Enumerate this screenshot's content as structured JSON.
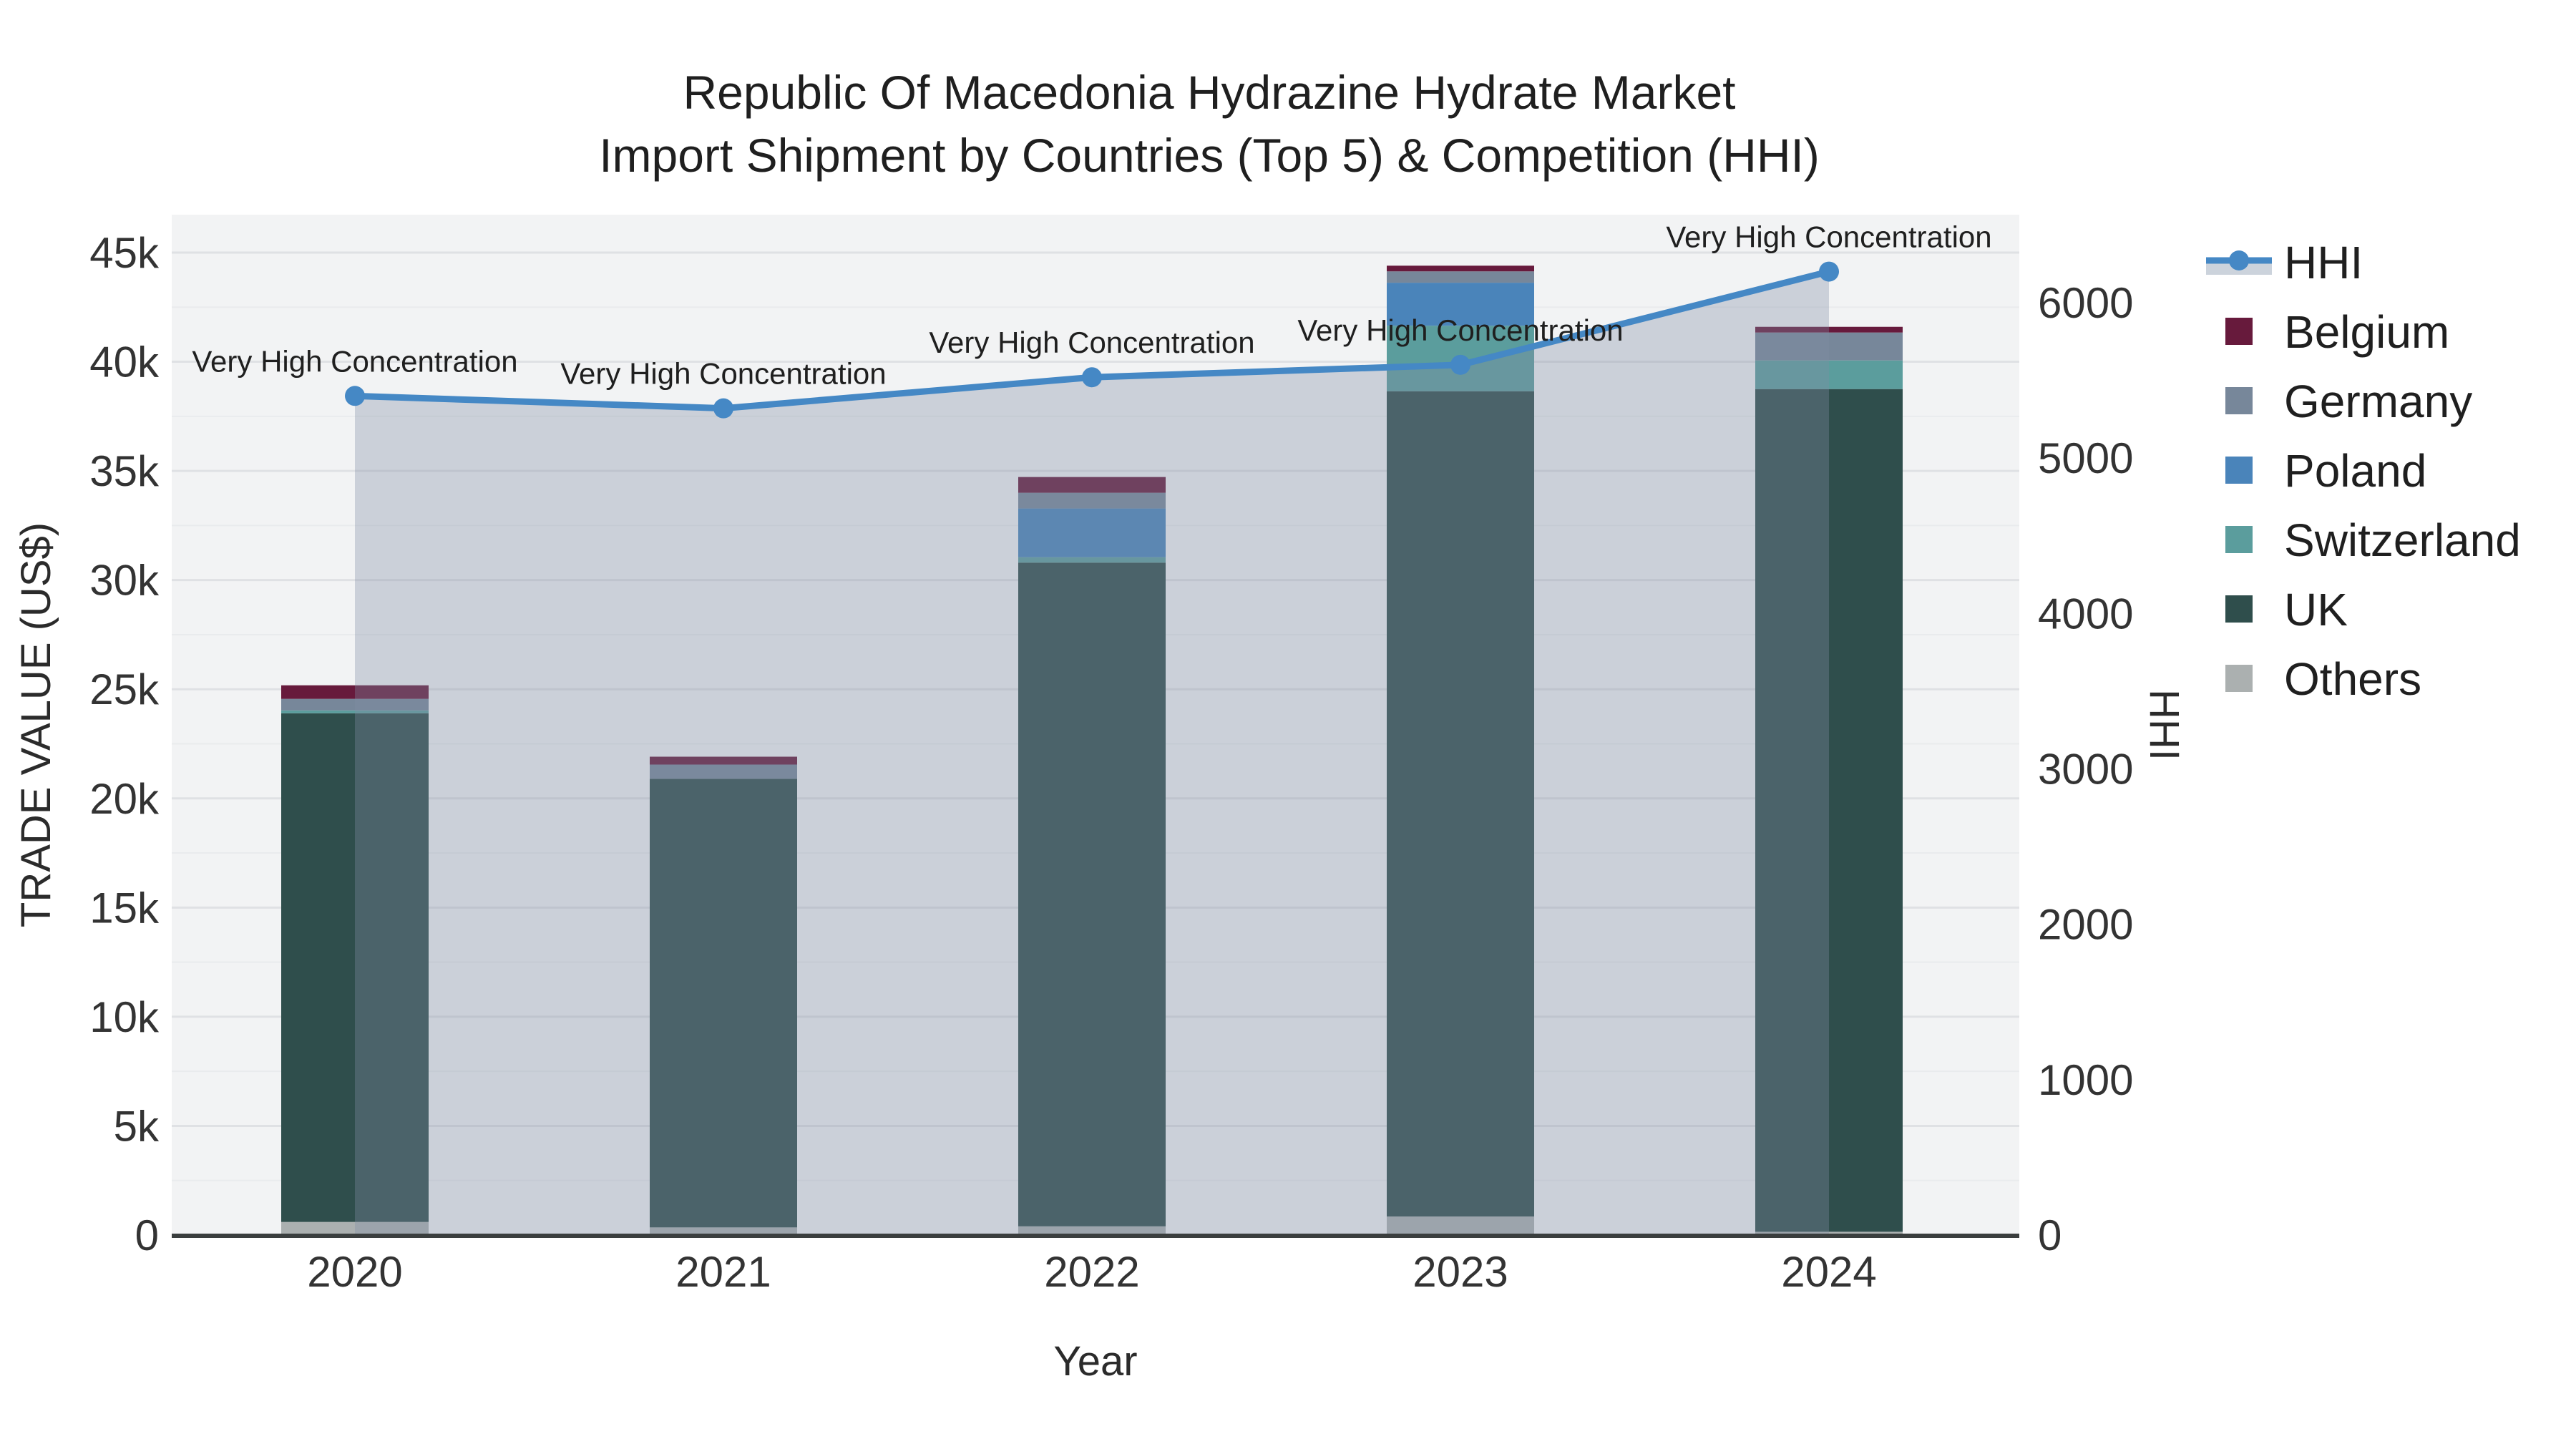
{
  "title": {
    "line1": "Republic Of Macedonia Hydrazine Hydrate Market",
    "line2": "Import Shipment by Countries (Top 5) & Competition (HHI)"
  },
  "axes": {
    "x": {
      "title": "Year",
      "tick_labels": [
        "2020",
        "2021",
        "2022",
        "2023",
        "2024"
      ]
    },
    "y_left": {
      "title": "TRADE VALUE (US$)",
      "tick_labels": [
        "0",
        "5k",
        "10k",
        "15k",
        "20k",
        "25k",
        "30k",
        "35k",
        "40k",
        "45k"
      ],
      "tick_values": [
        0,
        5000,
        10000,
        15000,
        20000,
        25000,
        30000,
        35000,
        40000,
        45000
      ]
    },
    "y_right": {
      "title": "HHI",
      "tick_labels": [
        "0",
        "1000",
        "2000",
        "3000",
        "4000",
        "5000",
        "6000"
      ],
      "tick_values": [
        0,
        1000,
        2000,
        3000,
        4000,
        5000,
        6000
      ]
    }
  },
  "legend": {
    "items": [
      {
        "id": "hhi",
        "label": "HHI",
        "kind": "line",
        "color": "#4588c5"
      },
      {
        "id": "belgium",
        "label": "Belgium",
        "kind": "swatch",
        "color": "#671a3c"
      },
      {
        "id": "germany",
        "label": "Germany",
        "kind": "swatch",
        "color": "#77879a"
      },
      {
        "id": "poland",
        "label": "Poland",
        "kind": "swatch",
        "color": "#4a84ba"
      },
      {
        "id": "switzerland",
        "label": "Switzerland",
        "kind": "swatch",
        "color": "#5b9d9d"
      },
      {
        "id": "uk",
        "label": "UK",
        "kind": "swatch",
        "color": "#2f4e4c"
      },
      {
        "id": "others",
        "label": "Others",
        "kind": "swatch",
        "color": "#abb0b0"
      }
    ]
  },
  "chart_data": {
    "type": "bar",
    "stacked": true,
    "categories": [
      "2020",
      "2021",
      "2022",
      "2023",
      "2024"
    ],
    "series": [
      {
        "name": "Others",
        "color": "#abb0b0",
        "values": [
          600,
          350,
          400,
          850,
          150
        ]
      },
      {
        "name": "UK",
        "color": "#2f4e4c",
        "values": [
          23300,
          20550,
          30400,
          37800,
          38600
        ]
      },
      {
        "name": "Switzerland",
        "color": "#5b9d9d",
        "values": [
          130,
          0,
          250,
          3000,
          1310
        ]
      },
      {
        "name": "Poland",
        "color": "#4a84ba",
        "values": [
          0,
          0,
          2230,
          1970,
          0
        ]
      },
      {
        "name": "Germany",
        "color": "#77879a",
        "values": [
          530,
          650,
          720,
          520,
          1280
        ]
      },
      {
        "name": "Belgium",
        "color": "#671a3c",
        "values": [
          620,
          360,
          720,
          260,
          260
        ]
      }
    ],
    "line_series": {
      "name": "HHI",
      "yaxis": "right",
      "area_fill": true,
      "values": [
        5400,
        5320,
        5520,
        5600,
        6200
      ]
    },
    "annotations": [
      {
        "x": "2020",
        "text": "Very High Concentration"
      },
      {
        "x": "2021",
        "text": "Very High Concentration"
      },
      {
        "x": "2022",
        "text": "Very High Concentration"
      },
      {
        "x": "2023",
        "text": "Very High Concentration"
      },
      {
        "x": "2024",
        "text": "Very High Concentration"
      }
    ],
    "title": "Republic Of Macedonia Hydrazine Hydrate Market Import Shipment by Countries (Top 5) & Competition (HHI)",
    "xlabel": "Year",
    "ylabel": "TRADE VALUE (US$)",
    "ylabel_right": "HHI",
    "ylim_left": [
      0,
      46700
    ],
    "ylim_right": [
      0,
      6565
    ],
    "grid": true,
    "legend_position": "right"
  },
  "colors": {
    "plot_background": "#f2f3f4",
    "figure_background": "#ffffff",
    "grid_major": "#dfe1e4",
    "grid_minor": "#e9ebed",
    "zero_line": "#3a3e3e",
    "hhi_line": "#4588c5",
    "hhi_area_fill": "rgba(128,142,164,0.34)",
    "legend_area_swatch": "#ccd3dc"
  }
}
